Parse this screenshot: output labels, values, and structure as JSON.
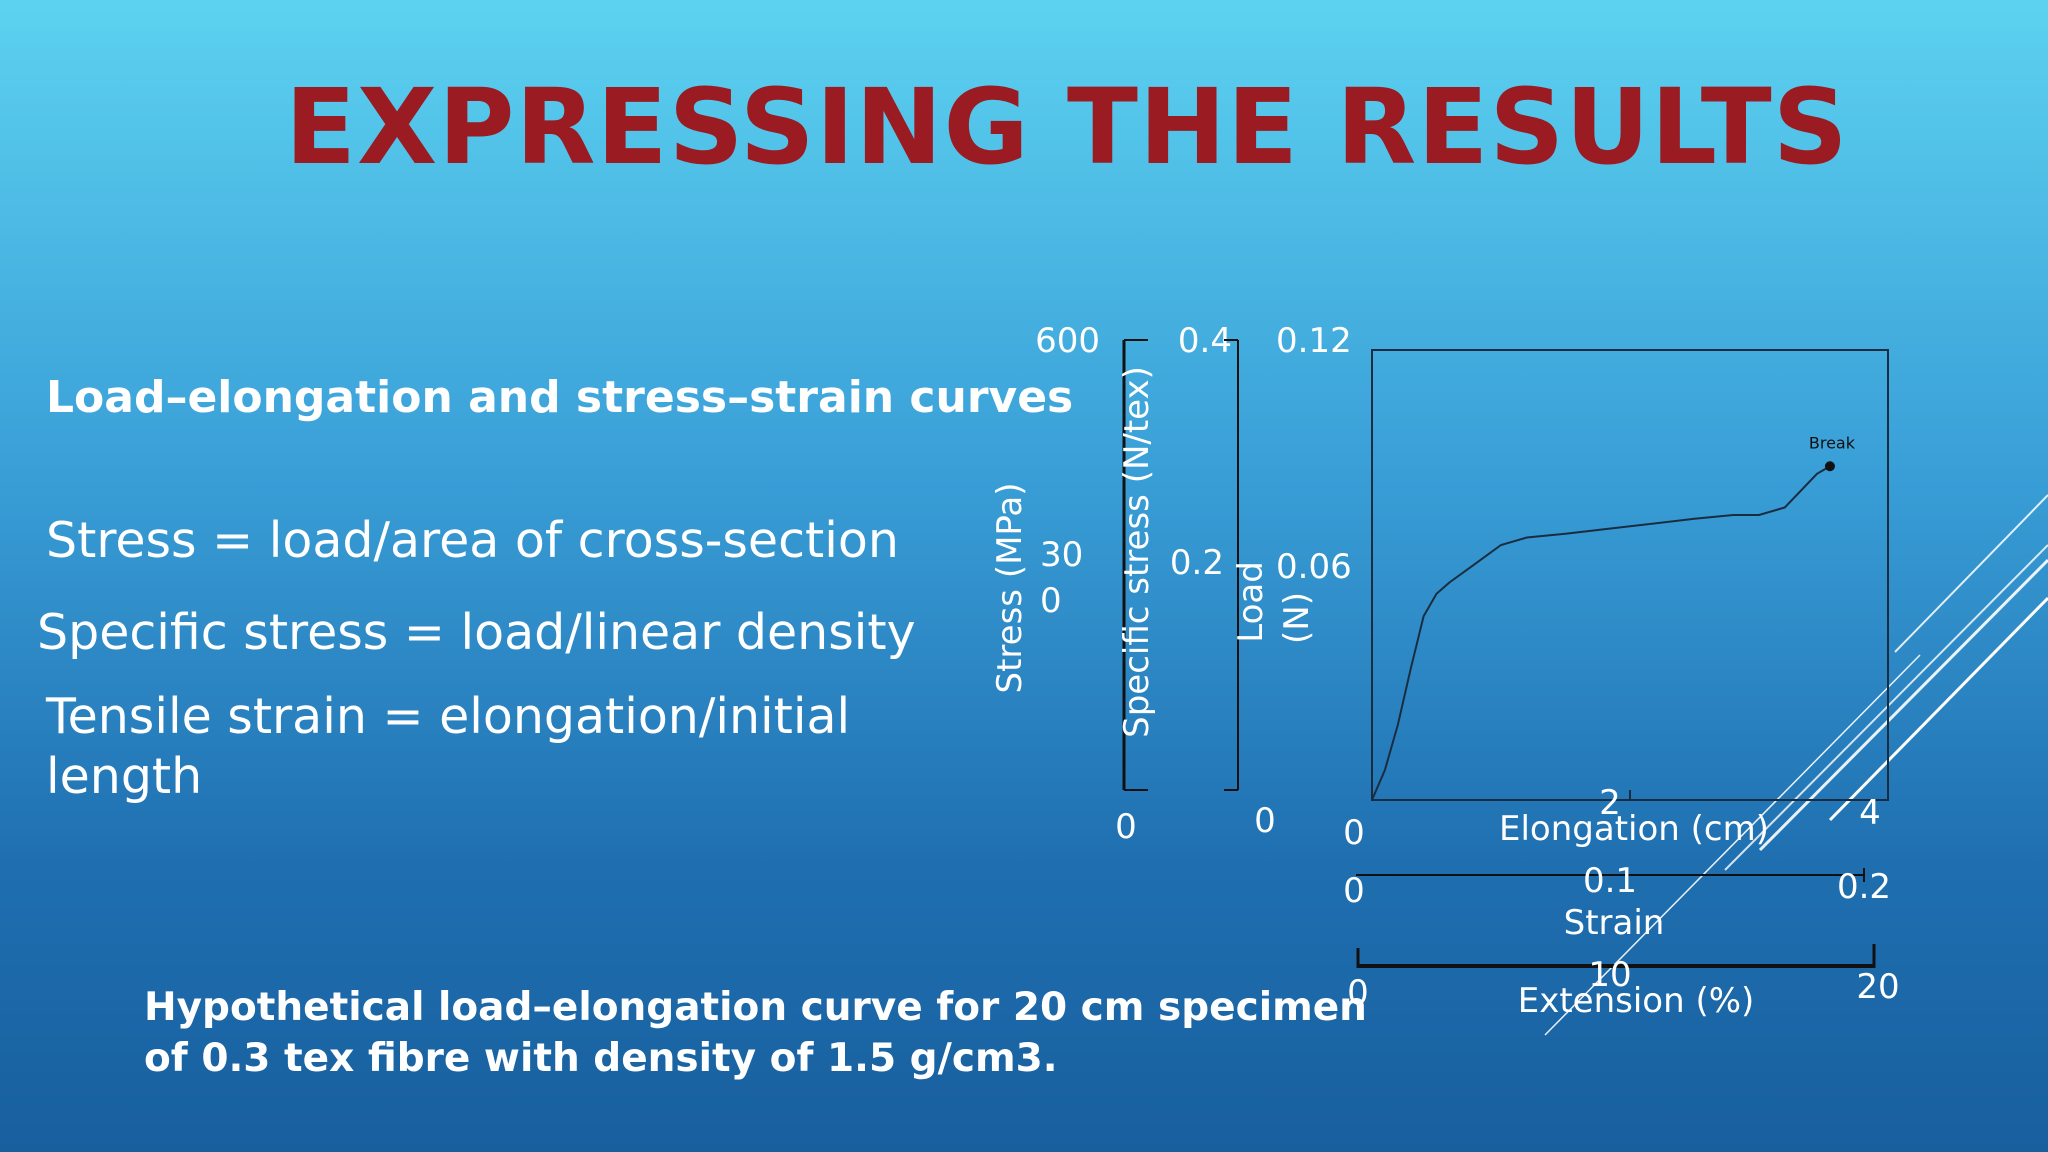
{
  "slide": {
    "title": "EXPRESSING THE RESULTS",
    "heading": "Load–elongation and stress–strain curves",
    "definitions": [
      "Stress = load/area of cross-section",
      "Specific stress = load/linear density",
      "Tensile strain = elongation/initial",
      "length"
    ],
    "caption": [
      "Hypothetical load–elongation curve for 20 cm specimen",
      "of 0.3 tex fibre with density of 1.5 g/cm3."
    ],
    "colors": {
      "title": "#9a1c22",
      "text": "#ffffff",
      "background_top": "#5dd2f0",
      "background_bottom": "#185f9e"
    }
  },
  "chart_data": {
    "type": "line",
    "annotation": "Break",
    "x_axes": [
      {
        "label": "Elongation (cm)",
        "ticks": [
          "0",
          "2",
          "4"
        ],
        "range": [
          0,
          4
        ]
      },
      {
        "label": "Strain",
        "ticks": [
          "0",
          "0.1",
          "0.2"
        ],
        "range": [
          0,
          0.2
        ]
      },
      {
        "label": "Extension (%)",
        "ticks": [
          "0",
          "10",
          "20"
        ],
        "range": [
          0,
          20
        ]
      }
    ],
    "y_axes": [
      {
        "label": "Stress (MPa)",
        "ticks": [
          "600",
          "30\n0",
          "0"
        ]
      },
      {
        "label": "Specific stress (N/tex)",
        "ticks": [
          "0.4",
          "0.2",
          "0"
        ],
        "range": [
          0,
          0.4
        ]
      },
      {
        "label": "Load (N)",
        "ticks": [
          "0.12",
          "0.06",
          "0"
        ],
        "range": [
          0,
          0.12
        ]
      }
    ],
    "series": [
      {
        "x": [
          0,
          0.1,
          0.2,
          0.3,
          0.4,
          0.5,
          0.6,
          0.8,
          1.0,
          1.2,
          1.5,
          2.0,
          2.5,
          2.8,
          3.0,
          3.2,
          3.45,
          3.55
        ],
        "y": [
          0,
          0.008,
          0.02,
          0.035,
          0.049,
          0.055,
          0.058,
          0.063,
          0.068,
          0.07,
          0.071,
          0.073,
          0.075,
          0.076,
          0.076,
          0.078,
          0.087,
          0.089
        ]
      }
    ]
  }
}
